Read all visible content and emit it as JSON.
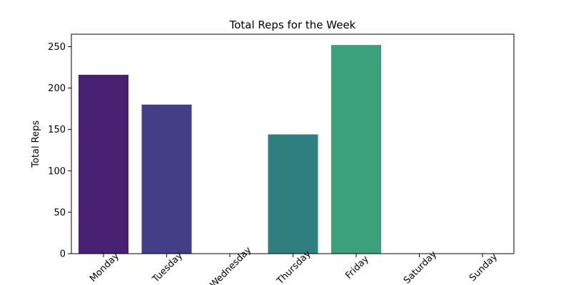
{
  "chart_data": {
    "type": "bar",
    "title": "Total Reps for the Week",
    "xlabel": "",
    "ylabel": "Total Reps",
    "categories": [
      "Monday",
      "Tuesday",
      "Wednesday",
      "Thursday",
      "Friday",
      "Saturday",
      "Sunday"
    ],
    "values": [
      216,
      180,
      0,
      144,
      252,
      0,
      0
    ],
    "colors": [
      "#482173",
      "#433e85",
      "#2c728e",
      "#2e7f7e",
      "#3aa17a",
      "#5ec962",
      "#addc30"
    ],
    "ylim": [
      0,
      265
    ],
    "yticks": [
      0,
      50,
      100,
      150,
      200,
      250
    ],
    "grid": false,
    "legend": "none"
  }
}
